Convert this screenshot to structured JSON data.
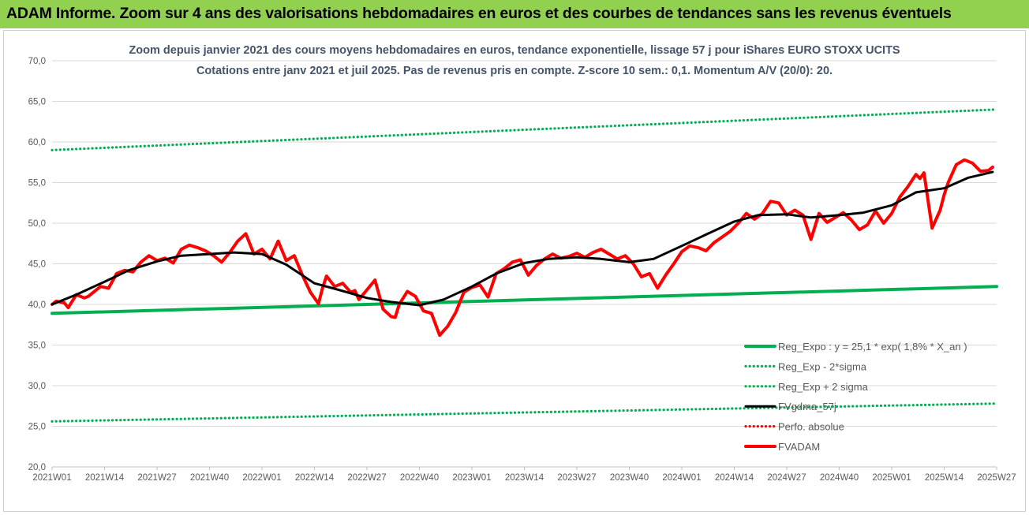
{
  "banner": {
    "title": "ADAM Informe. Zoom sur 4 ans des valorisations hebdomadaires en euros et des courbes de tendances sans les revenus éventuels"
  },
  "colors": {
    "banner_bg": "#92d050",
    "title_text": "#44546a",
    "reg_expo": "#00b050",
    "fvgdma": "#000000",
    "fvadam": "#ff0000",
    "perfo": "#ff0000",
    "grid": "#d9d9d9"
  },
  "chart_data": {
    "type": "line",
    "title_line1": "Zoom depuis janvier 2021 des cours moyens hebdomadaires en euros, tendance exponentielle, lissage 57 j pour iShares EURO STOXX UCITS",
    "title_line2": "Cotations entre janv 2021 et juil 2025. Pas de revenus pris en compte. Z-score 10 sem.: 0,1. Momentum A/V (20/0): 20.",
    "ylim": [
      20,
      70
    ],
    "y_ticks": [
      "20,0",
      "25,0",
      "30,0",
      "35,0",
      "40,0",
      "45,0",
      "50,0",
      "55,0",
      "60,0",
      "65,0",
      "70,0"
    ],
    "x_tick_labels": [
      "2021W01",
      "2021W14",
      "2021W27",
      "2021W40",
      "2022W01",
      "2022W14",
      "2022W27",
      "2022W40",
      "2023W01",
      "2023W14",
      "2023W27",
      "2023W40",
      "2024W01",
      "2024W14",
      "2024W27",
      "2024W40",
      "2025W01",
      "2025W14",
      "2025W27"
    ],
    "grid": "horizontal",
    "legend_position": "bottom-right",
    "series": [
      {
        "name": "Reg_Expo : y = 25,1 * exp( 1,8% *  X_an )",
        "style": "solid-thick",
        "color": "#00b050",
        "x": [
          0,
          234
        ],
        "y": [
          38.9,
          42.2
        ]
      },
      {
        "name": "Reg_Exp - 2*sigma",
        "style": "dotted",
        "color": "#00b050",
        "x": [
          0,
          234
        ],
        "y": [
          25.6,
          27.8
        ]
      },
      {
        "name": "Reg_Exp + 2 sigma",
        "style": "dotted",
        "color": "#00b050",
        "x": [
          0,
          234
        ],
        "y": [
          59.0,
          64.0
        ]
      },
      {
        "name": "FVgdma_57j",
        "style": "solid",
        "color": "#000000",
        "x": [
          0,
          6,
          13,
          19,
          26,
          32,
          39,
          45,
          52,
          58,
          65,
          71,
          78,
          84,
          91,
          97,
          104,
          110,
          117,
          123,
          130,
          136,
          143,
          149,
          156,
          162,
          169,
          175,
          182,
          188,
          195,
          201,
          208,
          214,
          221,
          227,
          233
        ],
        "y": [
          40.0,
          41.2,
          42.8,
          44.2,
          45.3,
          46.0,
          46.2,
          46.4,
          46.2,
          44.9,
          42.6,
          41.8,
          40.8,
          40.3,
          39.9,
          40.6,
          42.2,
          43.8,
          45.1,
          45.6,
          45.8,
          45.6,
          45.2,
          45.6,
          47.2,
          48.6,
          50.2,
          51.0,
          51.1,
          50.7,
          51.0,
          51.3,
          52.2,
          53.8,
          54.3,
          55.6,
          56.3
        ]
      },
      {
        "name": "Perfo. absolue",
        "style": "dotted",
        "color": "#ff0000",
        "x": [],
        "y": []
      },
      {
        "name": "FVADAM",
        "style": "solid-thick",
        "color": "#ff0000",
        "x": [
          0,
          1,
          3,
          4,
          6,
          8,
          9,
          12,
          14,
          16,
          18,
          20,
          22,
          24,
          26,
          28,
          30,
          32,
          34,
          36,
          38,
          40,
          42,
          44,
          46,
          48,
          50,
          52,
          54,
          56,
          58,
          60,
          62,
          64,
          66,
          67,
          68,
          70,
          72,
          74,
          75,
          76,
          78,
          80,
          82,
          84,
          85,
          86,
          88,
          90,
          92,
          94,
          96,
          98,
          100,
          102,
          104,
          106,
          108,
          110,
          112,
          114,
          116,
          118,
          120,
          122,
          124,
          126,
          128,
          130,
          132,
          134,
          136,
          138,
          140,
          142,
          144,
          146,
          148,
          150,
          152,
          154,
          156,
          158,
          160,
          162,
          164,
          166,
          168,
          170,
          172,
          174,
          176,
          178,
          180,
          182,
          184,
          186,
          188,
          190,
          192,
          194,
          196,
          198,
          200,
          202,
          204,
          206,
          208,
          210,
          212,
          214,
          215,
          216,
          218,
          220,
          221,
          222,
          224,
          226,
          228,
          230,
          232,
          233
        ],
        "y": [
          40.0,
          40.4,
          40.2,
          39.6,
          41.2,
          40.8,
          41.0,
          42.2,
          42.0,
          43.8,
          44.2,
          44.0,
          45.2,
          46.0,
          45.4,
          45.7,
          45.1,
          46.8,
          47.3,
          47.0,
          46.6,
          46.0,
          45.2,
          46.4,
          47.8,
          48.7,
          46.2,
          46.8,
          45.6,
          47.8,
          45.4,
          46.0,
          43.6,
          41.5,
          40.1,
          42.0,
          43.5,
          42.2,
          42.6,
          41.5,
          41.7,
          40.6,
          41.8,
          43.0,
          39.4,
          38.5,
          38.4,
          40.0,
          41.6,
          41.0,
          39.2,
          38.9,
          36.2,
          37.3,
          39.0,
          41.5,
          42.1,
          42.4,
          40.9,
          43.8,
          44.4,
          45.2,
          45.5,
          43.6,
          44.8,
          45.6,
          46.2,
          45.7,
          45.9,
          46.3,
          45.8,
          46.4,
          46.8,
          46.2,
          45.6,
          46.0,
          45.0,
          43.4,
          43.8,
          42.0,
          43.6,
          45.0,
          46.5,
          47.2,
          47.0,
          46.6,
          47.6,
          48.3,
          49.0,
          50.0,
          51.2,
          50.5,
          51.2,
          52.7,
          52.5,
          51.0,
          51.6,
          51.0,
          48.0,
          51.2,
          50.1,
          50.7,
          51.3,
          50.4,
          49.2,
          49.8,
          51.5,
          50.0,
          51.2,
          53.2,
          54.5,
          56.0,
          55.5,
          56.2,
          49.4,
          51.6,
          53.5,
          55.0,
          57.2,
          57.8,
          57.4,
          56.4,
          56.5,
          56.9
        ]
      }
    ]
  }
}
